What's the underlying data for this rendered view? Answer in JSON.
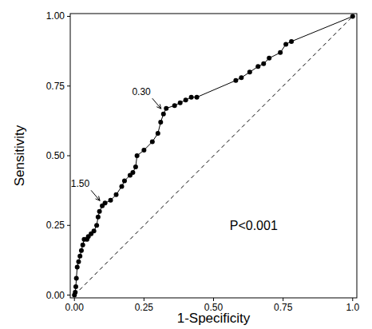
{
  "chart_data": {
    "type": "line",
    "x_label": "1-Specificity",
    "y_label": "Sensitivity",
    "xlim": [
      -0.015,
      1.015
    ],
    "ylim": [
      -0.01,
      1.01
    ],
    "xticks": [
      {
        "value": 0,
        "label": "0.00"
      },
      {
        "value": 0.25,
        "label": "0.25"
      },
      {
        "value": 0.5,
        "label": "0.50"
      },
      {
        "value": 0.75,
        "label": "0.75"
      },
      {
        "value": 1,
        "label": "1.0"
      }
    ],
    "yticks": [
      {
        "value": 0,
        "label": "0.00"
      },
      {
        "value": 0.25,
        "label": "0.25"
      },
      {
        "value": 0.5,
        "label": "0.50"
      },
      {
        "value": 0.75,
        "label": "0.75"
      },
      {
        "value": 1,
        "label": "1.00"
      }
    ],
    "series": [
      {
        "color": "#000000",
        "marker": "circle",
        "line_style": "solid",
        "x": [
          0,
          0.003,
          0.005,
          0.007,
          0.01,
          0.015,
          0.02,
          0.025,
          0.03,
          0.035,
          0.045,
          0.05,
          0.06,
          0.07,
          0.08,
          0.085,
          0.09,
          0.1,
          0.11,
          0.13,
          0.15,
          0.17,
          0.18,
          0.2,
          0.21,
          0.22,
          0.225,
          0.25,
          0.28,
          0.3,
          0.31,
          0.32,
          0.33,
          0.36,
          0.38,
          0.4,
          0.42,
          0.44,
          0.58,
          0.6,
          0.63,
          0.66,
          0.68,
          0.7,
          0.74,
          0.76,
          0.78,
          1.0
        ],
        "values": [
          0,
          0.01,
          0.03,
          0.06,
          0.1,
          0.12,
          0.14,
          0.16,
          0.18,
          0.2,
          0.2,
          0.21,
          0.22,
          0.23,
          0.25,
          0.28,
          0.3,
          0.32,
          0.33,
          0.34,
          0.36,
          0.39,
          0.41,
          0.43,
          0.44,
          0.46,
          0.5,
          0.52,
          0.55,
          0.58,
          0.62,
          0.65,
          0.67,
          0.68,
          0.69,
          0.7,
          0.71,
          0.71,
          0.77,
          0.78,
          0.8,
          0.82,
          0.83,
          0.85,
          0.87,
          0.9,
          0.91,
          1.0
        ]
      },
      {
        "color": "#000000",
        "marker": "none",
        "line_style": "dashed",
        "x": [
          0,
          1
        ],
        "values": [
          0,
          1
        ]
      }
    ],
    "annotations": [
      {
        "text": "0.30",
        "x": 0.32,
        "y": 0.66
      },
      {
        "text": "1.50",
        "x": 0.1,
        "y": 0.33
      },
      {
        "text": "P<0.001"
      }
    ]
  }
}
